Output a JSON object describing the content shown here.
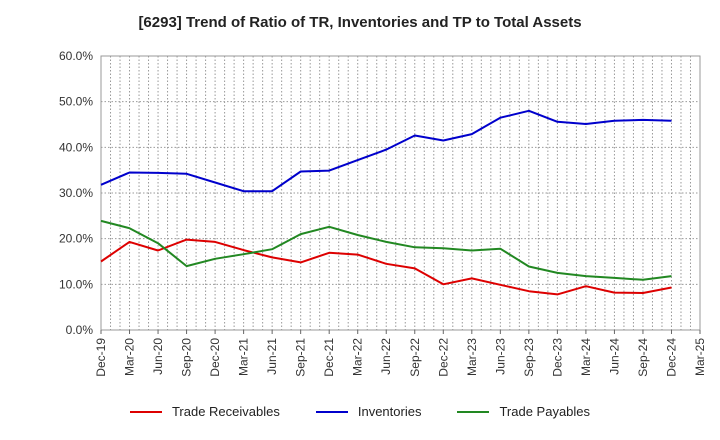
{
  "chart_data": {
    "type": "line",
    "title": "[6293]  Trend of Ratio of TR, Inventories and TP to Total Assets",
    "xlabel": "",
    "ylabel": "",
    "ylim": [
      0,
      60
    ],
    "yticks": [
      "0.0%",
      "10.0%",
      "20.0%",
      "30.0%",
      "40.0%",
      "50.0%",
      "60.0%"
    ],
    "xticks": [
      "Dec-19",
      "Mar-20",
      "Jun-20",
      "Sep-20",
      "Dec-20",
      "Mar-21",
      "Jun-21",
      "Sep-21",
      "Dec-21",
      "Mar-22",
      "Jun-22",
      "Sep-22",
      "Dec-22",
      "Mar-23",
      "Jun-23",
      "Sep-23",
      "Dec-23",
      "Mar-24",
      "Jun-24",
      "Sep-24",
      "Dec-24",
      "Mar-25"
    ],
    "x": [
      "Dec-19",
      "Mar-20",
      "Jun-20",
      "Sep-20",
      "Dec-20",
      "Mar-21",
      "Jun-21",
      "Sep-21",
      "Dec-21",
      "Mar-22",
      "Jun-22",
      "Sep-22",
      "Dec-22",
      "Mar-23",
      "Jun-23",
      "Sep-23",
      "Dec-23",
      "Mar-24",
      "Jun-24",
      "Sep-24",
      "Dec-24"
    ],
    "grid": true,
    "legend_position": "bottom",
    "series": [
      {
        "name": "Trade Receivables",
        "color": "#dd0000",
        "values": [
          15.0,
          19.3,
          17.4,
          19.8,
          19.3,
          17.5,
          15.9,
          14.8,
          16.9,
          16.5,
          14.5,
          13.5,
          10.0,
          11.3,
          9.9,
          8.5,
          7.8,
          9.6,
          8.2,
          8.1,
          9.3
        ]
      },
      {
        "name": "Inventories",
        "color": "#0000cc",
        "values": [
          31.8,
          34.5,
          34.4,
          34.2,
          32.3,
          30.4,
          30.4,
          34.7,
          34.9,
          37.2,
          39.5,
          42.6,
          41.5,
          42.9,
          46.5,
          48.0,
          45.6,
          45.1,
          45.8,
          46.0,
          45.8
        ]
      },
      {
        "name": "Trade Payables",
        "color": "#228822",
        "values": [
          23.9,
          22.3,
          19.0,
          14.0,
          15.6,
          16.6,
          17.7,
          21.0,
          22.6,
          20.8,
          19.3,
          18.1,
          17.9,
          17.4,
          17.8,
          13.9,
          12.5,
          11.8,
          11.4,
          11.0,
          11.8
        ]
      }
    ]
  }
}
